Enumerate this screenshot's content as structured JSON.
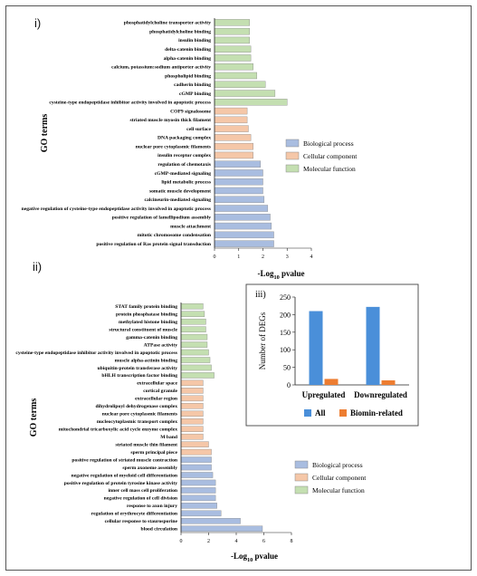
{
  "chart_data": [
    {
      "panel": "i)",
      "type": "bar",
      "orientation": "horizontal",
      "ylabel": "GO terms",
      "xlabel": "-Log10 pvalue",
      "xlim": [
        0,
        4
      ],
      "xticks": [
        0,
        1,
        2,
        3,
        4
      ],
      "legend": {
        "placement": "right",
        "items": [
          "Biological process",
          "Cellular component",
          "Molecular function"
        ]
      },
      "series": [
        {
          "name": "Molecular function",
          "color": "#c4dfb1",
          "categories": [
            "phosphatidylcholine transporter activity",
            "phosphatidylcholine binding",
            "insulin binding",
            "delta-catenin binding",
            "alpha-catenin binding",
            "calcium, potassium:sodium antiporter activity",
            "phospholipid binding",
            "cadherin binding",
            "cGMP binding",
            "cysteine-type endopeptidase inhibitor activity involved in apoptotic process"
          ],
          "values": [
            1.45,
            1.45,
            1.45,
            1.5,
            1.5,
            1.6,
            1.75,
            2.1,
            2.5,
            3.0
          ]
        },
        {
          "name": "Cellular component",
          "color": "#f5c7a8",
          "categories": [
            "COP9 signalosome",
            "striated muscle myosin thick filament",
            "cell surface",
            "DNA packaging complex",
            "nuclear pore cytoplasmic filaments",
            "insulin receptor complex"
          ],
          "values": [
            1.35,
            1.35,
            1.4,
            1.5,
            1.6,
            1.6
          ]
        },
        {
          "name": "Biological process",
          "color": "#a9bde0",
          "categories": [
            "regulation of chemotaxis",
            "cGMP-mediated signaling",
            "lipid metabolic process",
            "somatic muscle development",
            "calcineurin-mediated signaling",
            "negative regulation of cysteine-type endopeptidase activity involved in apoptotic process",
            "positive regulation of lamellipodium assembly",
            "muscle attachment",
            "mitotic chromosome condensation",
            "positive regulation of Ras protein signal transduction"
          ],
          "values": [
            1.9,
            2.0,
            2.0,
            2.0,
            2.05,
            2.2,
            2.3,
            2.35,
            2.45,
            2.45
          ]
        }
      ]
    },
    {
      "panel": "ii)",
      "type": "bar",
      "orientation": "horizontal",
      "ylabel": "GO terms",
      "xlabel": "-Log10 pvalue",
      "xlim": [
        0,
        8
      ],
      "xticks": [
        0,
        2,
        4,
        6,
        8
      ],
      "legend": {
        "placement": "right",
        "items": [
          "Biological process",
          "Cellular component",
          "Molecular function"
        ]
      },
      "series": [
        {
          "name": "Molecular function",
          "color": "#c4dfb1",
          "categories": [
            "STAT family protein binding",
            "protein phosphatase binding",
            "methylated histone binding",
            "structural constituent of muscle",
            "gamma-catenin binding",
            "ATPase activity",
            "cysteine-type endopeptidase inhibitor activity involved in apoptotic process",
            "muscle alpha-actinin binding",
            "ubiquitin-protein transferase activity",
            "bHLH transcription factor binding"
          ],
          "values": [
            1.6,
            1.7,
            1.8,
            1.8,
            1.9,
            1.9,
            2.0,
            2.1,
            2.2,
            2.4
          ]
        },
        {
          "name": "Cellular component",
          "color": "#f5c7a8",
          "categories": [
            "extracellular space",
            "cortical granule",
            "extracellular region",
            "dihydrolipoyl dehydrogenase complex",
            "nuclear pore cytoplasmic filaments",
            "nucleocytoplasmic transport complex",
            "mitochondrial tricarboxylic acid cycle enzyme complex",
            "M band",
            "striated muscle thin filament",
            "sperm principal piece"
          ],
          "values": [
            1.6,
            1.6,
            1.6,
            1.6,
            1.6,
            1.6,
            1.6,
            1.6,
            2.0,
            2.2
          ]
        },
        {
          "name": "Biological process",
          "color": "#a9bde0",
          "categories": [
            "positive regulation of striated muscle contraction",
            "sperm axoneme assembly",
            "negative regulation of myeloid cell differentiation",
            "positive regulation of protein tyrosine kinase activity",
            "inner cell mass cell proliferation",
            "negative regulation of cell division",
            "response to axon injury",
            "regulation of erythrocyte differentiation",
            "cellular response to staurosporine",
            "blood circulation"
          ],
          "values": [
            2.2,
            2.2,
            2.3,
            2.5,
            2.5,
            2.5,
            2.6,
            2.9,
            4.3,
            5.9
          ]
        }
      ]
    },
    {
      "panel": "iii)",
      "type": "bar",
      "categories": [
        "Upregulated",
        "Downregulated"
      ],
      "ylabel": "Number of DEGs",
      "ylim": [
        0,
        250
      ],
      "yticks": [
        0,
        50,
        100,
        150,
        200,
        250
      ],
      "legend": {
        "placement": "bottom"
      },
      "series": [
        {
          "name": "All",
          "color": "#4a8fd9",
          "values": [
            210,
            222
          ]
        },
        {
          "name": "Biomin-related",
          "color": "#ed7d31",
          "values": [
            17,
            13
          ]
        }
      ]
    }
  ]
}
